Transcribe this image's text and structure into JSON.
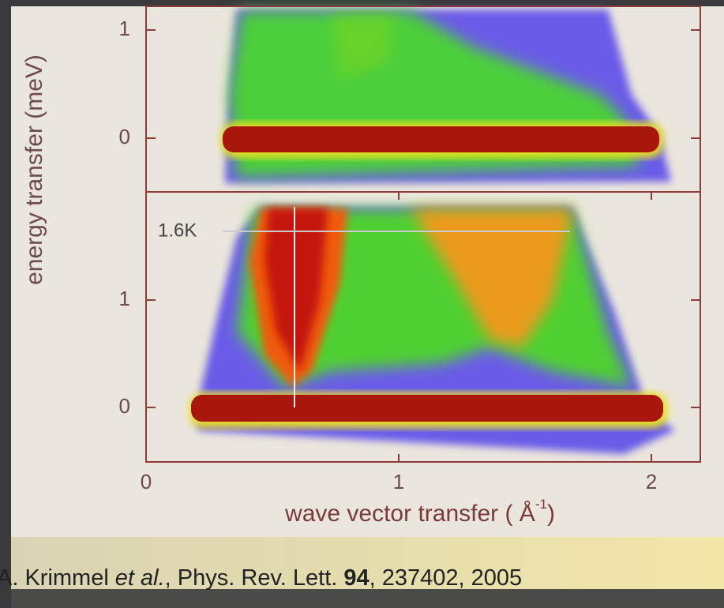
{
  "figure": {
    "x_axis": {
      "label": "wave vector transfer ( Å",
      "label_superscript": "-1",
      "label_close": ")",
      "ticks": [
        0,
        1,
        2
      ]
    },
    "y_axis": {
      "label": "energy transfer (meV)"
    },
    "top_panel": {
      "yticks": [
        1,
        0
      ]
    },
    "bottom_panel": {
      "yticks": [
        1,
        0
      ],
      "annotation": "1.6K"
    },
    "caption": {
      "authors": "A. Krimmel",
      "etal": "et al.",
      "journal": ", Phys. Rev. Lett. ",
      "volume": "94",
      "rest": ", 237402, 2005"
    }
  }
}
